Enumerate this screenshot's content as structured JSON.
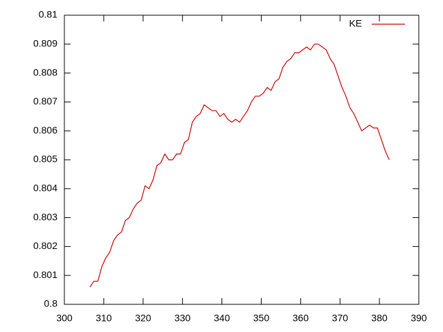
{
  "chart_data": {
    "type": "line",
    "x": [
      306.5,
      307.5,
      308.5,
      309.5,
      310.5,
      311.5,
      312.5,
      313.5,
      314.5,
      315.5,
      316.5,
      317.5,
      318.5,
      319.5,
      320.5,
      321.5,
      322.5,
      323.5,
      324.5,
      325.5,
      326.5,
      327.5,
      328.5,
      329.5,
      330.5,
      331.5,
      332.5,
      333.5,
      334.5,
      335.5,
      336.5,
      337.5,
      338.5,
      339.5,
      340.5,
      341.5,
      342.5,
      343.5,
      344.5,
      345.5,
      346.5,
      347.5,
      348.5,
      349.5,
      350.5,
      351.5,
      352.5,
      353.5,
      354.5,
      355.5,
      356.5,
      357.5,
      358.5,
      359.5,
      360.5,
      361.5,
      362.5,
      363.5,
      364.5,
      365.5,
      366.5,
      367.5,
      368.5,
      369.5,
      370.5,
      371.5,
      372.5,
      373.5,
      374.5,
      375.5,
      376.5,
      377.5,
      378.5,
      379.5,
      380.5,
      381.5,
      382.5
    ],
    "series": [
      {
        "name": "KE",
        "color": "#cc0000",
        "values": [
          0.8006,
          0.8008,
          0.8008,
          0.8013,
          0.8016,
          0.8018,
          0.8022,
          0.8024,
          0.8025,
          0.8029,
          0.803,
          0.8033,
          0.8035,
          0.8036,
          0.8041,
          0.804,
          0.8043,
          0.8048,
          0.8049,
          0.8052,
          0.805,
          0.805,
          0.8052,
          0.8052,
          0.8056,
          0.8057,
          0.8063,
          0.8065,
          0.8066,
          0.8069,
          0.8068,
          0.8067,
          0.8067,
          0.8065,
          0.8066,
          0.8064,
          0.8063,
          0.8064,
          0.8063,
          0.8065,
          0.8067,
          0.807,
          0.8072,
          0.8072,
          0.8073,
          0.8075,
          0.8074,
          0.8077,
          0.8078,
          0.8082,
          0.8084,
          0.8085,
          0.8087,
          0.8087,
          0.8088,
          0.8089,
          0.8088,
          0.809,
          0.809,
          0.8089,
          0.8088,
          0.8085,
          0.8083,
          0.8079,
          0.8075,
          0.8072,
          0.8068,
          0.8066,
          0.8063,
          0.806,
          0.8061,
          0.8062,
          0.8061,
          0.8061,
          0.8057,
          0.8053,
          0.805
        ]
      }
    ],
    "xlim": [
      300,
      390
    ],
    "xticks": [
      300,
      310,
      320,
      330,
      340,
      350,
      360,
      370,
      380,
      390
    ],
    "ylim": [
      0.8,
      0.81
    ],
    "yticks": [
      0.8,
      0.801,
      0.802,
      0.803,
      0.804,
      0.805,
      0.806,
      0.807,
      0.808,
      0.809,
      0.81
    ],
    "legend": "top-right"
  }
}
